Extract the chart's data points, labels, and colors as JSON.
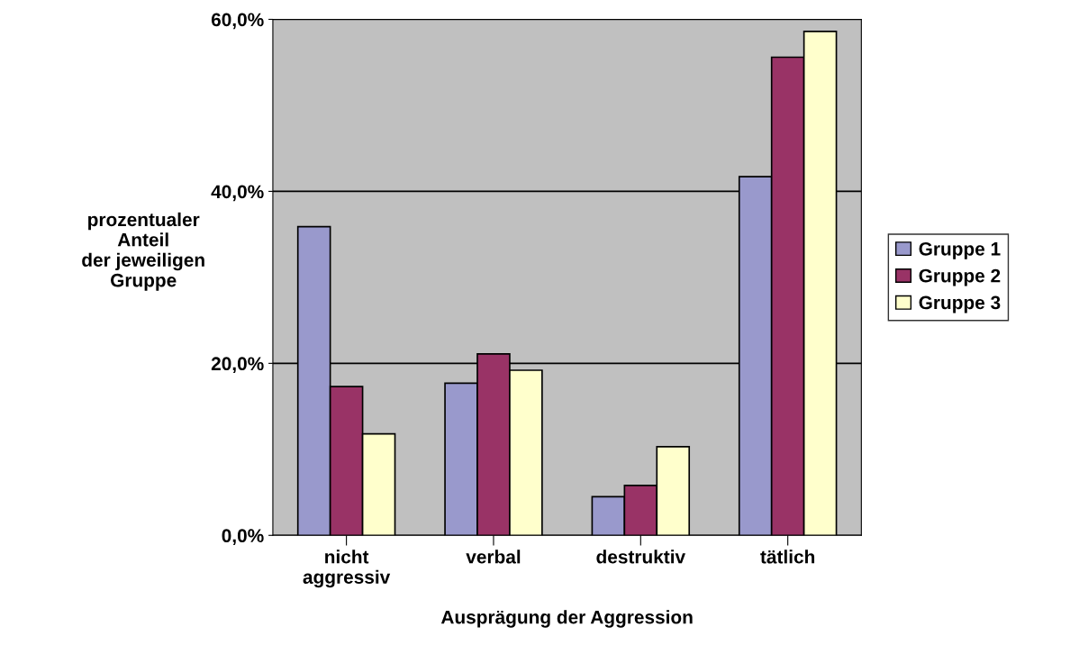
{
  "chart_data": {
    "type": "bar",
    "xlabel": "Ausprägung der Aggression",
    "ylabel": "prozentualer\nAnteil\nder jeweiligen\nGruppe",
    "categories": [
      "nicht\naggressiv",
      "verbal",
      "destruktiv",
      "tätlich"
    ],
    "series": [
      {
        "name": "Gruppe 1",
        "color": "#9999cc",
        "values": [
          35.9,
          17.7,
          4.5,
          41.7
        ]
      },
      {
        "name": "Gruppe 2",
        "color": "#993366",
        "values": [
          17.3,
          21.1,
          5.8,
          55.6
        ]
      },
      {
        "name": "Gruppe 3",
        "color": "#ffffcc",
        "values": [
          11.8,
          19.2,
          10.3,
          58.6
        ]
      }
    ],
    "ylim": [
      0,
      60
    ],
    "yticks": [
      {
        "value": 0,
        "label": "0,0%"
      },
      {
        "value": 20,
        "label": "20,0%"
      },
      {
        "value": 40,
        "label": "40,0%"
      },
      {
        "value": 60,
        "label": "60,0%"
      }
    ],
    "grid": "y",
    "legend": "right"
  }
}
